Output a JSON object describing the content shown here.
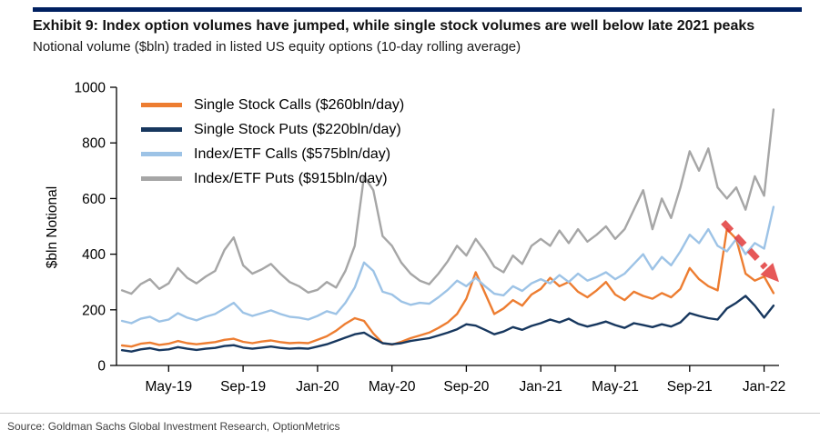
{
  "header": {
    "title": "Exhibit 9: Index option volumes have jumped, while single stock volumes are well below late 2021 peaks",
    "subtitle": "Notional volume ($bln) traded in listed US equity options (10-day rolling average)"
  },
  "footer": {
    "source": "Source: Goldman Sachs Global Investment Research, OptionMetrics"
  },
  "colors": {
    "top_rule": "#002060",
    "axis": "#000000",
    "divider": "#c9c9c9",
    "annotation_arrow": "#e23b3b",
    "single_stock_calls": "#ed7d31",
    "single_stock_puts": "#17375e",
    "index_etf_calls": "#9dc3e6",
    "index_etf_puts": "#a6a6a6"
  },
  "legend": {
    "items": [
      {
        "label": "Single Stock Calls ($260bln/day)"
      },
      {
        "label": "Single Stock Puts ($220bln/day)"
      },
      {
        "label": "Index/ETF Calls ($575bln/day)"
      },
      {
        "label": "Index/ETF Puts ($915bln/day)"
      }
    ]
  },
  "chart_data": {
    "type": "line",
    "title": "Exhibit 9: Index option volumes have jumped, while single stock volumes are well below late 2021 peaks",
    "subtitle": "Notional volume ($bln) traded in listed US equity options (10-day rolling average)",
    "ylabel": "$bln Notional",
    "xlabel": "",
    "ylim": [
      0,
      1000
    ],
    "xlim": [
      1.2,
      36.8
    ],
    "grid": false,
    "legend_position": "top-left",
    "x_unit": "months since Jan-2019 (Jan-19 = 0, Jan-22 = 36)",
    "x_start": 1.5,
    "x_step": 0.5,
    "n_points": 71,
    "y_ticks": [
      0,
      200,
      400,
      600,
      800,
      1000
    ],
    "x_ticks": [
      {
        "label": "May-19",
        "t": 4
      },
      {
        "label": "Sep-19",
        "t": 8
      },
      {
        "label": "Jan-20",
        "t": 12
      },
      {
        "label": "May-20",
        "t": 16
      },
      {
        "label": "Sep-20",
        "t": 20
      },
      {
        "label": "Jan-21",
        "t": 24
      },
      {
        "label": "May-21",
        "t": 28
      },
      {
        "label": "Sep-21",
        "t": 32
      },
      {
        "label": "Jan-22",
        "t": 36
      }
    ],
    "series": [
      {
        "name": "Single Stock Calls",
        "color": "#ed7d31",
        "values": [
          72,
          68,
          78,
          82,
          74,
          78,
          88,
          80,
          76,
          80,
          84,
          92,
          96,
          85,
          80,
          86,
          90,
          84,
          80,
          82,
          80,
          92,
          105,
          125,
          150,
          170,
          160,
          115,
          80,
          75,
          85,
          98,
          108,
          118,
          135,
          155,
          185,
          240,
          335,
          260,
          185,
          205,
          235,
          215,
          255,
          275,
          315,
          285,
          300,
          265,
          245,
          270,
          300,
          255,
          235,
          265,
          250,
          240,
          260,
          245,
          275,
          350,
          310,
          285,
          270,
          490,
          455,
          330,
          305,
          320,
          260
        ]
      },
      {
        "name": "Single Stock Puts",
        "color": "#17375e",
        "values": [
          55,
          50,
          58,
          62,
          55,
          58,
          66,
          60,
          56,
          60,
          63,
          70,
          73,
          64,
          60,
          64,
          68,
          63,
          60,
          62,
          60,
          68,
          76,
          88,
          100,
          112,
          118,
          98,
          80,
          76,
          80,
          88,
          93,
          98,
          108,
          118,
          130,
          148,
          143,
          128,
          112,
          122,
          138,
          128,
          142,
          152,
          165,
          155,
          168,
          150,
          140,
          148,
          158,
          145,
          135,
          152,
          145,
          138,
          148,
          140,
          155,
          188,
          178,
          170,
          165,
          205,
          225,
          250,
          215,
          172,
          215
        ]
      },
      {
        "name": "Index/ETF Calls",
        "color": "#9dc3e6",
        "values": [
          160,
          152,
          168,
          175,
          158,
          165,
          188,
          172,
          162,
          175,
          185,
          205,
          225,
          190,
          178,
          188,
          198,
          185,
          175,
          172,
          165,
          178,
          195,
          185,
          225,
          280,
          370,
          340,
          265,
          255,
          230,
          218,
          225,
          222,
          245,
          272,
          305,
          285,
          315,
          285,
          258,
          252,
          285,
          268,
          295,
          310,
          295,
          325,
          300,
          330,
          305,
          318,
          335,
          310,
          330,
          365,
          400,
          345,
          390,
          360,
          410,
          470,
          440,
          490,
          430,
          410,
          455,
          400,
          440,
          420,
          570
        ]
      },
      {
        "name": "Index/ETF Puts",
        "color": "#a6a6a6",
        "values": [
          270,
          258,
          292,
          310,
          275,
          295,
          350,
          315,
          295,
          320,
          340,
          415,
          460,
          360,
          330,
          345,
          365,
          330,
          300,
          285,
          262,
          272,
          300,
          280,
          340,
          430,
          680,
          630,
          465,
          430,
          370,
          330,
          305,
          292,
          330,
          375,
          430,
          395,
          455,
          410,
          355,
          335,
          395,
          365,
          430,
          455,
          430,
          485,
          440,
          490,
          445,
          470,
          500,
          455,
          490,
          560,
          630,
          490,
          600,
          530,
          640,
          770,
          700,
          780,
          640,
          600,
          640,
          560,
          680,
          610,
          920
        ]
      }
    ],
    "annotation_arrow": {
      "from_t": 33.8,
      "from_v": 515,
      "to_t": 36.8,
      "to_v": 300,
      "style": "dashed",
      "color": "#e23b3b"
    }
  }
}
